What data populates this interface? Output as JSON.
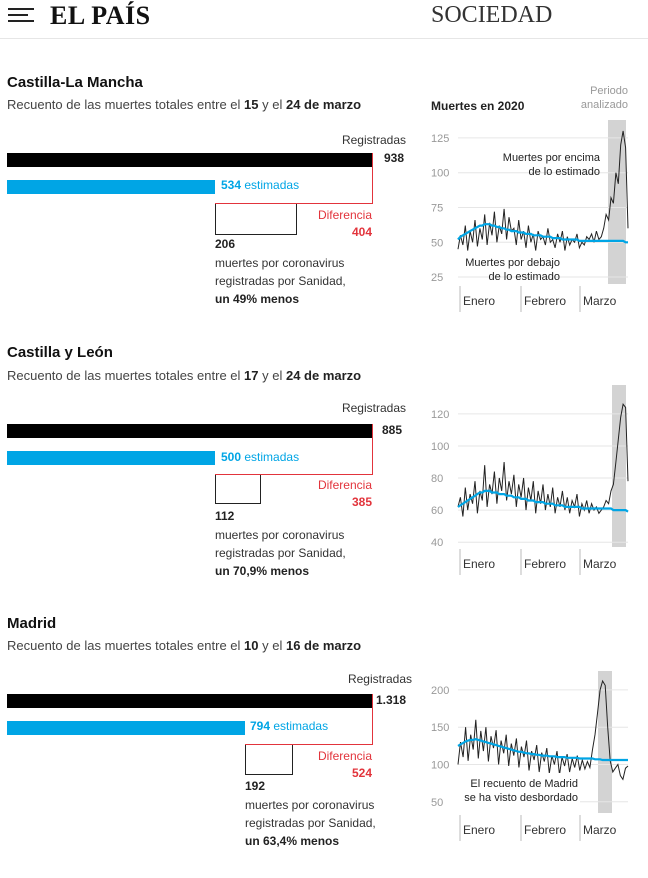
{
  "header": {
    "logo": "EL PAÍS",
    "section": "SOCIEDAD"
  },
  "chart_common": {
    "title": "Muertes en 2020",
    "periodo_label_1": "Periodo",
    "periodo_label_2": "analizado",
    "months": [
      "Enero",
      "Febrero",
      "Marzo"
    ],
    "bar_labels": {
      "registradas": "Registradas",
      "estimadas_suffix": "estimadas",
      "diferencia": "Diferencia",
      "desc_line1": "muertes por coronavirus",
      "desc_line2": "registradas por Sanidad,"
    }
  },
  "regions": [
    {
      "name": "Castilla-La Mancha",
      "subtitle_pre": "Recuento de las muertes totales entre el ",
      "subtitle_bold1": "15",
      "subtitle_mid": " y el ",
      "subtitle_bold2": "24 de marzo",
      "registradas": "938",
      "estimadas": "534",
      "diferencia": "404",
      "sanidad": "206",
      "menos": "un 49% menos",
      "annotation_above_1": "Muertes por encima",
      "annotation_above_2": "de lo estimado",
      "annotation_below_1": "Muertes por debajo",
      "annotation_below_2": "de lo estimado",
      "yticks": [
        "125",
        "100",
        "75",
        "50",
        "25"
      ]
    },
    {
      "name": "Castilla y León",
      "subtitle_pre": "Recuento de las muertes totales entre el ",
      "subtitle_bold1": "17",
      "subtitle_mid": " y el ",
      "subtitle_bold2": "24 de marzo",
      "registradas": "885",
      "estimadas": "500",
      "diferencia": "385",
      "sanidad": "112",
      "menos": "un 70,9% menos",
      "yticks": [
        "120",
        "100",
        "80",
        "60",
        "40"
      ]
    },
    {
      "name": "Madrid",
      "subtitle_pre": "Recuento de las muertes totales entre el ",
      "subtitle_bold1": "10",
      "subtitle_mid": " y el ",
      "subtitle_bold2": "16 de marzo",
      "registradas": "1.318",
      "estimadas": "794",
      "diferencia": "524",
      "sanidad": "192",
      "menos": "un 63,4% menos",
      "annotation_1": "El recuento de Madrid",
      "annotation_2": "se ha visto desbordado",
      "yticks": [
        "200",
        "150",
        "100",
        "50"
      ]
    }
  ],
  "colors": {
    "registradas": "#000000",
    "estimadas": "#00a5e5",
    "diferencia": "#e2343c",
    "periodo": "#d3d3d3"
  },
  "chart_data": [
    {
      "type": "line",
      "region": "Castilla-La Mancha",
      "ylim": [
        20,
        135
      ],
      "series": [
        {
          "values": [
            45,
            55,
            48,
            62,
            44,
            58,
            50,
            66,
            47,
            60,
            52,
            70,
            48,
            64,
            55,
            72,
            50,
            62,
            56,
            74,
            52,
            68,
            58,
            60,
            48,
            66,
            52,
            58,
            46,
            62,
            50,
            56,
            44,
            58,
            52,
            54,
            48,
            60,
            50,
            52,
            46,
            56,
            50,
            58,
            44,
            54,
            48,
            52,
            50,
            56,
            46,
            50,
            48,
            54,
            52,
            56,
            50,
            58,
            52,
            54,
            60,
            70,
            66,
            82,
            78,
            100,
            92,
            120,
            130,
            118,
            60
          ]
        },
        {
          "values": [
            52,
            54,
            55,
            56,
            57,
            58,
            59,
            60,
            61,
            62,
            62,
            63,
            63,
            63,
            62,
            62,
            61,
            61,
            60,
            60,
            59,
            59,
            58,
            58,
            58,
            57,
            57,
            57,
            56,
            56,
            56,
            55,
            55,
            55,
            55,
            54,
            54,
            54,
            54,
            53,
            53,
            53,
            53,
            52,
            52,
            52,
            52,
            52,
            52,
            52,
            51,
            51,
            51,
            51,
            51,
            51,
            51,
            51,
            51,
            51,
            51,
            51,
            51,
            51,
            51,
            51,
            51,
            51,
            51,
            50,
            50
          ]
        }
      ]
    },
    {
      "type": "line",
      "region": "Castilla y León",
      "ylim": [
        37,
        133
      ],
      "series": [
        {
          "values": [
            62,
            68,
            56,
            74,
            60,
            70,
            64,
            78,
            58,
            72,
            66,
            88,
            62,
            76,
            70,
            84,
            64,
            80,
            72,
            90,
            66,
            78,
            70,
            82,
            62,
            76,
            68,
            80,
            60,
            74,
            66,
            78,
            58,
            72,
            64,
            76,
            60,
            70,
            62,
            74,
            58,
            68,
            62,
            72,
            60,
            68,
            58,
            66,
            62,
            70,
            56,
            64,
            60,
            66,
            58,
            64,
            60,
            62,
            58,
            60,
            62,
            66,
            64,
            72,
            76,
            90,
            104,
            118,
            126,
            124,
            78
          ]
        },
        {
          "values": [
            62,
            63,
            64,
            65,
            66,
            67,
            68,
            69,
            70,
            71,
            71,
            72,
            72,
            72,
            71,
            71,
            71,
            70,
            70,
            70,
            69,
            69,
            69,
            68,
            68,
            68,
            67,
            67,
            67,
            66,
            66,
            66,
            65,
            65,
            65,
            65,
            64,
            64,
            64,
            64,
            63,
            63,
            63,
            63,
            62,
            62,
            62,
            62,
            62,
            62,
            62,
            61,
            61,
            61,
            61,
            61,
            61,
            61,
            61,
            61,
            61,
            61,
            61,
            61,
            60,
            60,
            60,
            60,
            60,
            60,
            59
          ]
        }
      ]
    },
    {
      "type": "line",
      "region": "Madrid",
      "ylim": [
        35,
        220
      ],
      "series": [
        {
          "values": [
            100,
            130,
            110,
            150,
            105,
            140,
            120,
            160,
            108,
            145,
            118,
            150,
            104,
            138,
            122,
            146,
            100,
            132,
            115,
            140,
            98,
            128,
            112,
            135,
            96,
            124,
            110,
            132,
            92,
            118,
            106,
            126,
            90,
            116,
            104,
            122,
            88,
            112,
            100,
            118,
            86,
            110,
            98,
            114,
            90,
            108,
            96,
            112,
            92,
            106,
            94,
            104,
            96,
            120,
            140,
            170,
            200,
            212,
            206,
            150,
            105,
            90,
            95,
            100,
            85,
            80,
            95,
            98
          ]
        },
        {
          "values": [
            125,
            127,
            129,
            131,
            132,
            133,
            133,
            134,
            133,
            132,
            131,
            130,
            129,
            128,
            127,
            126,
            125,
            124,
            123,
            122,
            121,
            120,
            119,
            118,
            117,
            117,
            116,
            115,
            115,
            114,
            114,
            113,
            113,
            112,
            112,
            112,
            111,
            111,
            111,
            110,
            110,
            110,
            110,
            109,
            109,
            109,
            109,
            109,
            108,
            108,
            108,
            108,
            108,
            108,
            107,
            107,
            107,
            106,
            106,
            106,
            106,
            106,
            106,
            106,
            106,
            106,
            106,
            106
          ]
        }
      ]
    }
  ]
}
